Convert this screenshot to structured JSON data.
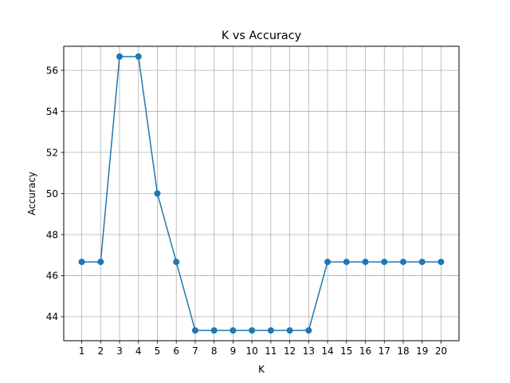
{
  "chart_data": {
    "type": "line",
    "title": "K vs Accuracy",
    "xlabel": "K",
    "ylabel": "Accuracy",
    "x": [
      1,
      2,
      3,
      4,
      5,
      6,
      7,
      8,
      9,
      10,
      11,
      12,
      13,
      14,
      15,
      16,
      17,
      18,
      19,
      20
    ],
    "y": [
      46.67,
      46.67,
      56.67,
      56.67,
      50.0,
      46.67,
      43.33,
      43.33,
      43.33,
      43.33,
      43.33,
      43.33,
      43.33,
      46.67,
      46.67,
      46.67,
      46.67,
      46.67,
      46.67,
      46.67
    ],
    "xlim": [
      0.05,
      20.95
    ],
    "ylim": [
      42.83,
      57.17
    ],
    "xticks": [
      1,
      2,
      3,
      4,
      5,
      6,
      7,
      8,
      9,
      10,
      11,
      12,
      13,
      14,
      15,
      16,
      17,
      18,
      19,
      20
    ],
    "yticks": [
      44,
      46,
      48,
      50,
      52,
      54,
      56
    ],
    "grid": true,
    "marker": "circle",
    "color": "#1f77b4"
  }
}
